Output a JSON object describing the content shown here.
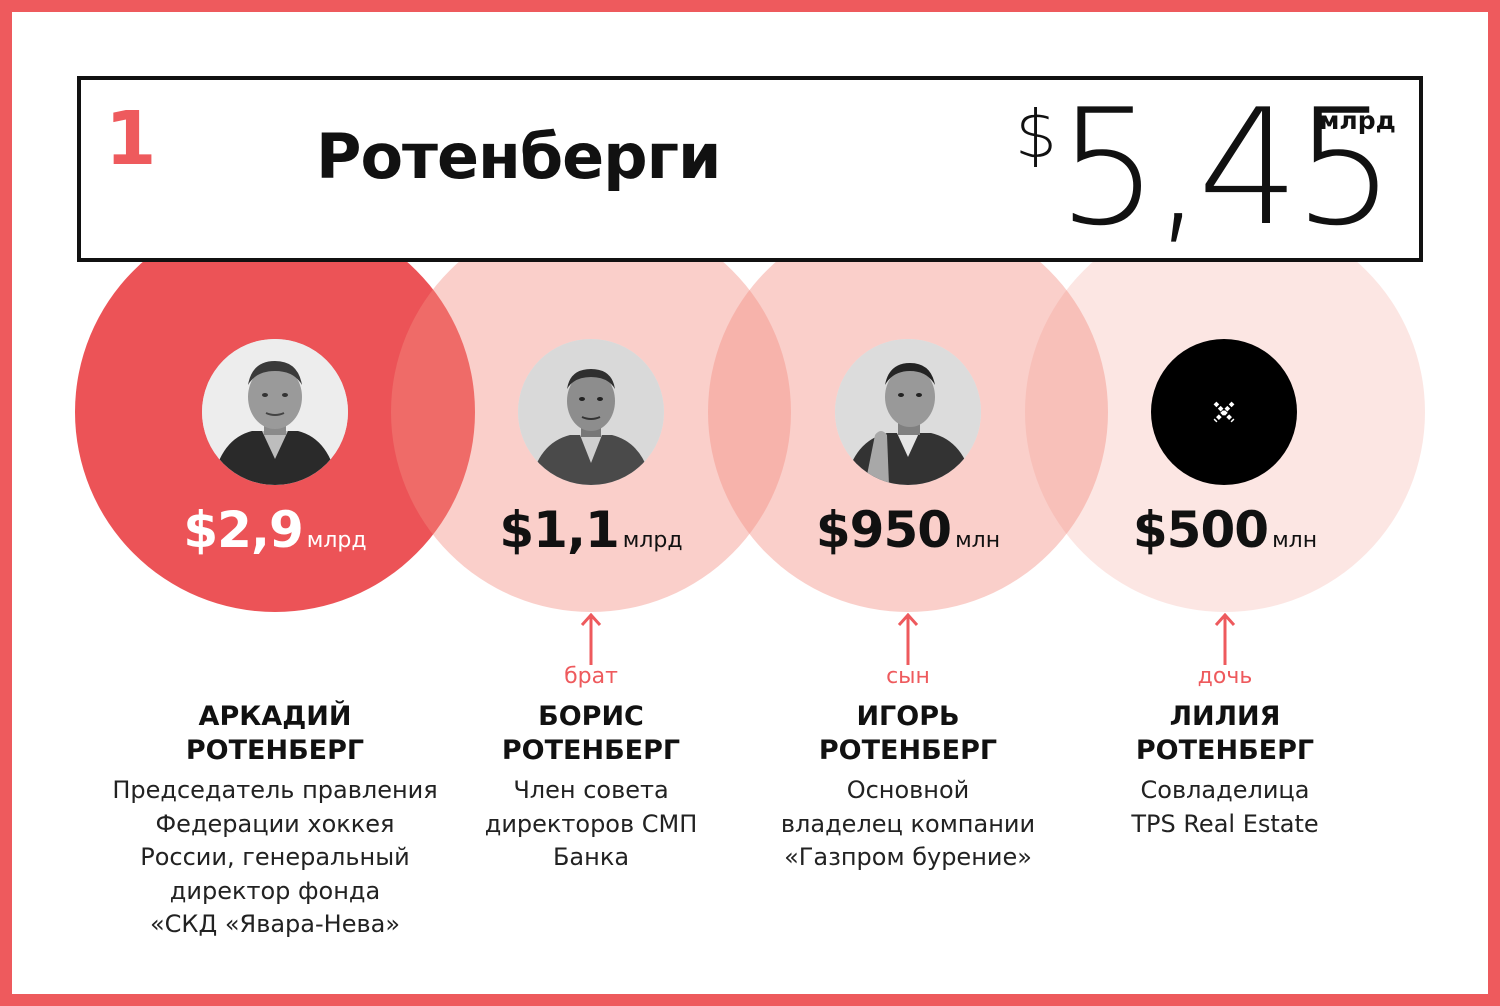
{
  "header": {
    "rank": "1",
    "family": "Ротенберги",
    "total_dollar": "$",
    "total_value": "5,45",
    "total_unit": "млрд"
  },
  "colors": {
    "accent": "#ee5a5d",
    "primary_circle": "#ec5357",
    "light_circle": "#f6c6bf",
    "lightest_circle": "#fbe2dd"
  },
  "people": [
    {
      "amount": "$2,9",
      "unit": "млрд",
      "relation": "",
      "name_line1": "АРКАДИЙ",
      "name_line2": "РОТЕНБЕРГ",
      "desc": [
        "Председатель правления",
        "Федерации хоккея",
        "России, генеральный",
        "директор фонда",
        "«СКД «Явара-Нева»"
      ]
    },
    {
      "amount": "$1,1",
      "unit": "млрд",
      "relation": "брат",
      "name_line1": "БОРИС",
      "name_line2": "РОТЕНБЕРГ",
      "desc": [
        "Член совета",
        "директоров СМП",
        "Банка"
      ]
    },
    {
      "amount": "$950",
      "unit": "млн",
      "relation": "сын",
      "name_line1": "ИГОРЬ",
      "name_line2": "РОТЕНБЕРГ",
      "desc": [
        "Основной",
        "владелец компании",
        "«Газпром бурение»"
      ]
    },
    {
      "amount": "$500",
      "unit": "млн",
      "relation": "дочь",
      "name_line1": "ЛИЛИЯ",
      "name_line2": "РОТЕНБЕРГ",
      "desc": [
        "Совладелица",
        "TPS Real Estate"
      ]
    }
  ]
}
